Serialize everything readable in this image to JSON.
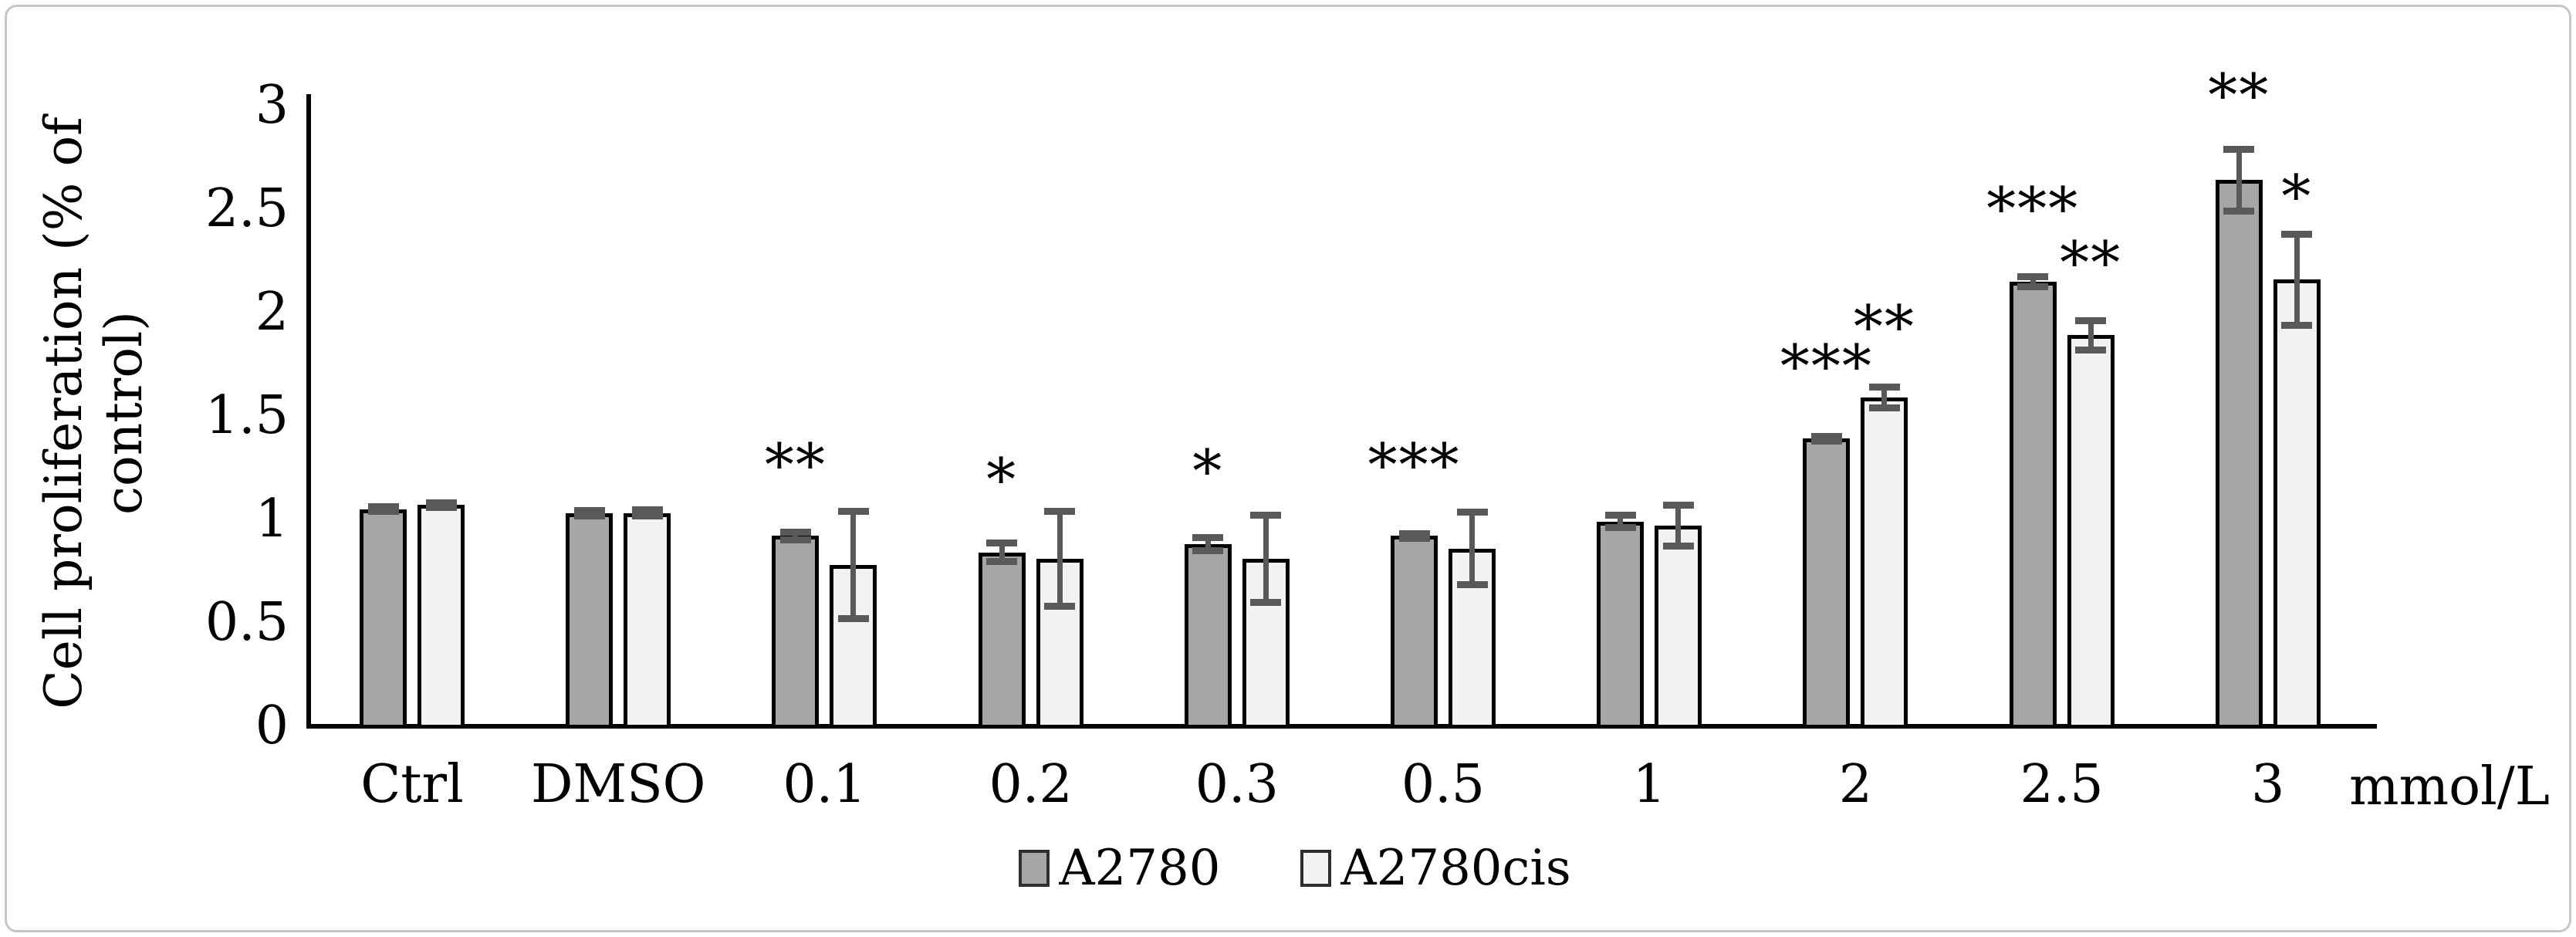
{
  "figure": {
    "background": "#ffffff",
    "border_color": "#c6c6c6"
  },
  "chart_data": {
    "type": "bar",
    "title": "",
    "ylabel": "Cell proliferation (% of control)",
    "ylabel_lines": [
      "Cell proliferation (% of",
      "control)"
    ],
    "xlabel_unit": "mmol/L",
    "categories": [
      "Ctrl",
      "DMSO",
      "0.1",
      "0.2",
      "0.3",
      "0.5",
      "1",
      "2",
      "2.5",
      "3"
    ],
    "ylim": [
      0,
      3
    ],
    "ytick_step": 0.5,
    "ytick_labels": [
      "0",
      "0.5",
      "1",
      "1.5",
      "2",
      "2.5",
      "3"
    ],
    "grid": false,
    "legend_position": "bottom",
    "bar_border_color": "#000000",
    "error_bar_color": "#595959",
    "series": [
      {
        "name": "A2780",
        "fill": "#a6a6a6",
        "values": [
          1.05,
          1.03,
          0.92,
          0.84,
          0.88,
          0.92,
          0.99,
          1.39,
          2.15,
          2.64
        ],
        "errors": [
          0.012,
          0.012,
          0.018,
          0.045,
          0.032,
          0.012,
          0.03,
          0.012,
          0.025,
          0.15
        ],
        "sig": [
          null,
          null,
          "**",
          "*",
          "*",
          "***",
          null,
          "***",
          "***",
          "**"
        ],
        "sig_y": [
          null,
          null,
          1.26,
          1.19,
          1.23,
          1.26,
          null,
          1.74,
          2.5,
          3.05
        ]
      },
      {
        "name": "A2780cis",
        "fill": "#f2f2f2",
        "values": [
          1.07,
          1.03,
          0.78,
          0.81,
          0.81,
          0.86,
          0.97,
          1.59,
          1.89,
          2.16
        ],
        "errors": [
          0.012,
          0.015,
          0.26,
          0.23,
          0.21,
          0.175,
          0.1,
          0.05,
          0.07,
          0.22
        ],
        "sig": [
          null,
          null,
          null,
          null,
          null,
          null,
          null,
          "**",
          "**",
          "*"
        ],
        "sig_y": [
          null,
          null,
          null,
          null,
          null,
          null,
          null,
          1.93,
          2.24,
          2.56
        ]
      }
    ]
  }
}
